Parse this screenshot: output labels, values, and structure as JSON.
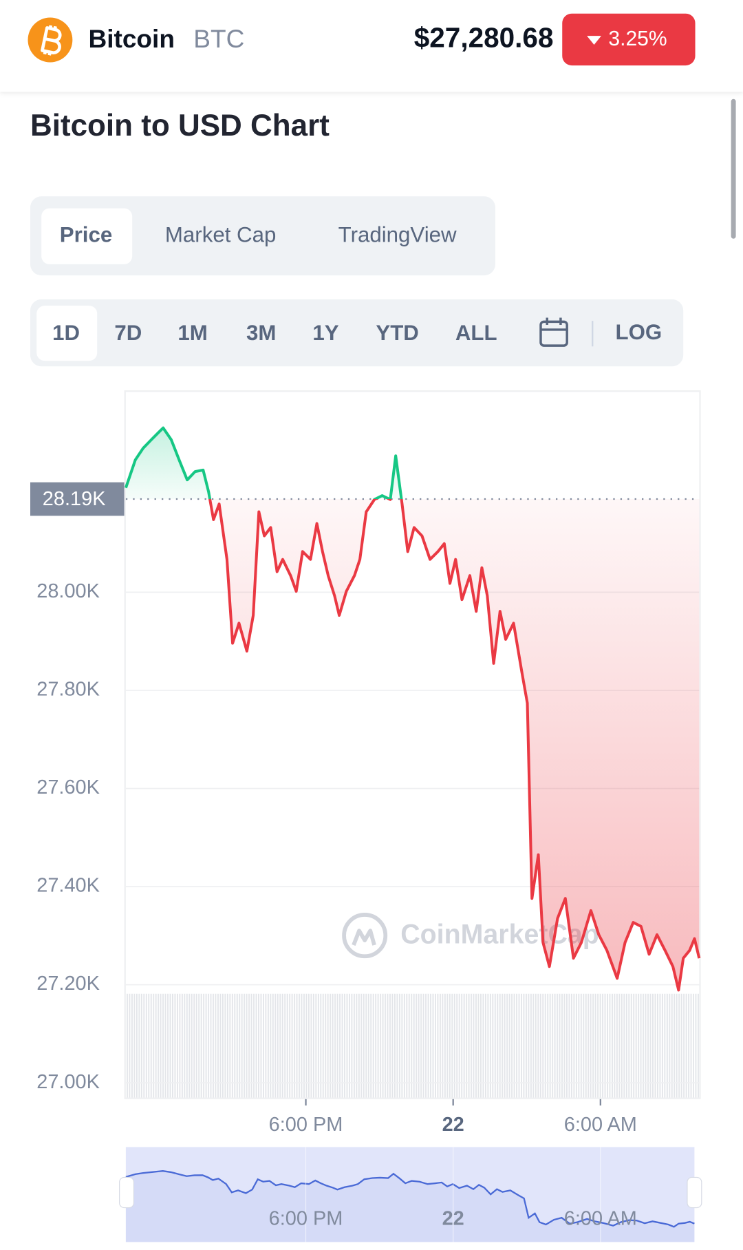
{
  "header": {
    "name": "Bitcoin",
    "symbol": "BTC",
    "price": "$27,280.68",
    "change": "3.25%"
  },
  "title": "Bitcoin to USD Chart",
  "tabs": [
    "Price",
    "Market Cap",
    "TradingView"
  ],
  "ranges": [
    "1D",
    "7D",
    "1M",
    "3M",
    "1Y",
    "YTD",
    "ALL"
  ],
  "log_toggle": "LOG",
  "watermark": "CoinMarketCap",
  "chart_data": {
    "type": "line",
    "x": [
      10.67,
      11.06,
      11.38,
      11.71,
      12.03,
      12.19,
      12.52,
      12.84,
      13.17,
      13.49,
      13.82,
      14.04,
      14.24,
      14.47,
      14.79,
      15.02,
      15.28,
      15.6,
      15.86,
      16.09,
      16.31,
      16.57,
      16.83,
      17.06,
      17.38,
      17.61,
      17.87,
      18.19,
      18.45,
      18.68,
      18.91,
      19.17,
      19.36,
      19.65,
      19.98,
      20.2,
      20.46,
      20.79,
      21.11,
      21.44,
      21.66,
      21.92,
      22.15,
      22.41,
      22.73,
      23.06,
      23.38,
      23.64,
      23.87,
      24.1,
      24.36,
      24.68,
      24.94,
      25.17,
      25.39,
      25.65,
      25.91,
      26.14,
      26.46,
      26.79,
      27.02,
      27.21,
      27.47,
      27.66,
      27.92,
      28.25,
      28.57,
      28.9,
      29.22,
      29.61,
      29.93,
      30.26,
      30.68,
      31.0,
      31.33,
      31.65,
      31.98,
      32.3,
      32.63,
      32.95,
      33.18,
      33.37,
      33.63,
      33.83,
      34.02
    ],
    "values": [
      28213,
      28270,
      28294,
      28311,
      28327,
      28335,
      28311,
      28270,
      28229,
      28246,
      28249,
      28205,
      28148,
      28180,
      28067,
      27896,
      27937,
      27880,
      27953,
      28164,
      28115,
      28132,
      28042,
      28067,
      28034,
      28002,
      28083,
      28067,
      28140,
      28083,
      28034,
      27993,
      27953,
      28002,
      28034,
      28067,
      28164,
      28189,
      28197,
      28189,
      28278,
      28180,
      28083,
      28132,
      28115,
      28067,
      28083,
      28099,
      28018,
      28067,
      27985,
      28034,
      27961,
      28050,
      27993,
      27855,
      27961,
      27904,
      27937,
      27839,
      27774,
      27376,
      27465,
      27286,
      27237,
      27335,
      27376,
      27254,
      27286,
      27351,
      27302,
      27270,
      27213,
      27286,
      27327,
      27319,
      27262,
      27302,
      27270,
      27237,
      27189,
      27254,
      27270,
      27294,
      27254
    ],
    "xlim": [
      10.67,
      34.02
    ],
    "xticks": [
      {
        "value": 18,
        "label": "6:00 PM"
      },
      {
        "value": 24,
        "label": "22"
      },
      {
        "value": 30,
        "label": "6:00 AM"
      }
    ],
    "ylim": [
      26970,
      28410
    ],
    "yticks": [
      {
        "value": 27000,
        "label": "27.00K"
      },
      {
        "value": 27200,
        "label": "27.20K"
      },
      {
        "value": 27400,
        "label": "27.40K"
      },
      {
        "value": 27600,
        "label": "27.60K"
      },
      {
        "value": 27800,
        "label": "27.80K"
      },
      {
        "value": 28000,
        "label": "28.00K"
      }
    ],
    "reference": {
      "value": 28190,
      "label": "28.19K"
    },
    "color_up": "#16c784",
    "color_down": "#ea3943",
    "navigator_color": "#4a6ad6",
    "grid": true
  }
}
